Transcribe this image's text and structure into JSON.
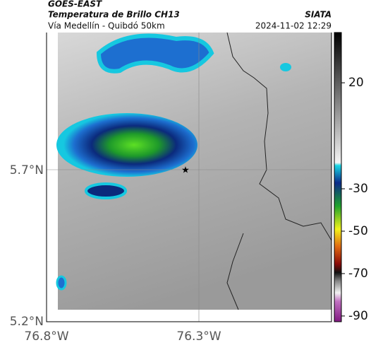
{
  "header": {
    "title": "GOES-EAST",
    "subtitle": "Temperatura de Brillo CH13",
    "route": "Vía Medellín - Quibdó 50km",
    "source": "SIATA",
    "timestamp": "2024-11-02 12:29"
  },
  "axes": {
    "lat_ticks": [
      "5.7°N",
      "5.2°N"
    ],
    "lon_ticks": [
      "76.8°W",
      "76.3°W"
    ]
  },
  "colorbar": {
    "ticks": [
      20,
      -30,
      -50,
      -70,
      -90
    ]
  }
}
